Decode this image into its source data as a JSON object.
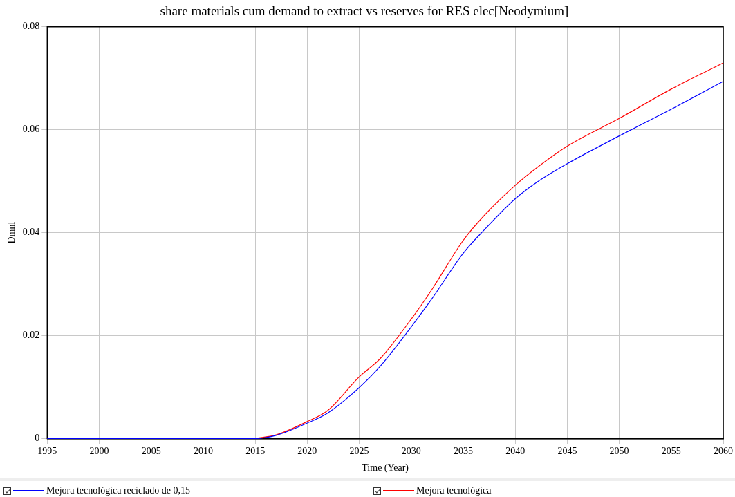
{
  "chart_data": {
    "type": "line",
    "title": "share materials cum demand to extract vs reserves for RES elec[Neodymium]",
    "xlabel": "Time (Year)",
    "ylabel": "Dmnl",
    "x": [
      1995,
      2000,
      2005,
      2010,
      2015,
      2017,
      2020,
      2022,
      2025,
      2027,
      2030,
      2032,
      2035,
      2037,
      2040,
      2042,
      2045,
      2050,
      2055,
      2060
    ],
    "series": [
      {
        "name": "Mejora tecnológica reciclado de 0,15",
        "color": "#0000ff",
        "values": [
          0,
          0,
          0,
          0,
          0,
          0.0006,
          0.003,
          0.005,
          0.0099,
          0.014,
          0.0217,
          0.0272,
          0.036,
          0.0405,
          0.0466,
          0.0497,
          0.0534,
          0.0588,
          0.064,
          0.0694
        ]
      },
      {
        "name": "Mejora tecnológica",
        "color": "#ff0000",
        "values": [
          null,
          null,
          null,
          null,
          0,
          0.0007,
          0.0033,
          0.0055,
          0.012,
          0.0155,
          0.0232,
          0.029,
          0.0385,
          0.0433,
          0.0492,
          0.0525,
          0.0568,
          0.0622,
          0.0679,
          0.073
        ]
      }
    ],
    "xlim": [
      1995,
      2060
    ],
    "xticks": [
      1995,
      2000,
      2005,
      2010,
      2015,
      2020,
      2025,
      2030,
      2035,
      2040,
      2045,
      2050,
      2055,
      2060
    ],
    "ylim": [
      0,
      0.08
    ],
    "yticks": [
      0,
      0.02,
      0.04,
      0.06,
      0.08
    ],
    "grid": true,
    "legend": "bottom",
    "marker": "none",
    "line_style": "solid"
  }
}
